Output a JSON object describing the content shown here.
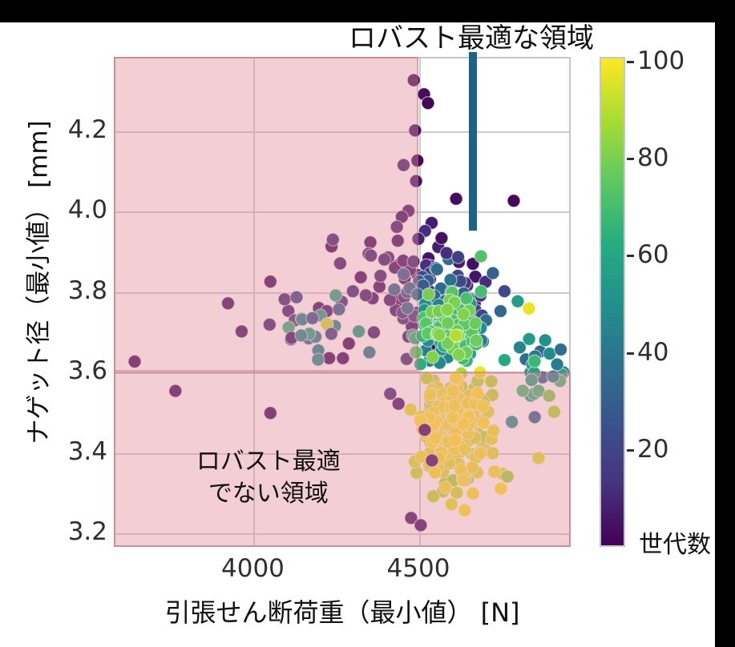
{
  "title": {
    "text": "ロバスト最適な領域"
  },
  "annotations": {
    "not_robust_line1": "ロバスト最適",
    "not_robust_line2": "でない領域",
    "colorbar_label": "世代数"
  },
  "axes": {
    "x_label": "引張せん断荷重（最小値） [N]",
    "y_label": "ナゲット径（最小値） [mm]",
    "x_ticks": [
      "4000",
      "4500"
    ],
    "x_tick_values": [
      4000,
      4500
    ],
    "y_ticks": [
      "4.2",
      "4.0",
      "3.8",
      "3.6",
      "3.4",
      "3.2"
    ],
    "y_tick_values": [
      4.2,
      4.0,
      3.8,
      3.6,
      3.4,
      3.2
    ],
    "x_range": [
      3580,
      4960
    ],
    "y_range": [
      3.164,
      4.383
    ],
    "grid": true
  },
  "colorbar": {
    "label": "世代数",
    "ticks": [
      100,
      80,
      60,
      40,
      20
    ],
    "vmin": 0,
    "vmax": 101
  },
  "colors": {
    "robust_line": "#1b6488",
    "region_fill": "rgba(226,140,154,0.42)",
    "region_border": "rgba(165,72,88,0.30)",
    "gridline": "#cbcbcb",
    "point_edge": "rgba(255,255,255,0.55)",
    "viridis_stops": [
      [
        0.0,
        "#440154"
      ],
      [
        0.125,
        "#46327e"
      ],
      [
        0.25,
        "#3b528b"
      ],
      [
        0.375,
        "#2c728e"
      ],
      [
        0.5,
        "#21918c"
      ],
      [
        0.625,
        "#27ad81"
      ],
      [
        0.75,
        "#5ec962"
      ],
      [
        0.875,
        "#aadc32"
      ],
      [
        1.0,
        "#fde725"
      ]
    ]
  },
  "chart_data": {
    "type": "scatter",
    "title": "ロバスト最適な領域",
    "xlabel": "引張せん断荷重（最小値） [N]",
    "ylabel": "ナゲット径（最小値） [mm]",
    "xlim": [
      3580,
      4960
    ],
    "ylim": [
      3.164,
      4.383
    ],
    "colormap": "viridis",
    "color_label": "世代数",
    "color_range": [
      0,
      100
    ],
    "point_radius_px": 8,
    "robust_line": {
      "x": 4665,
      "y_top": 4.395,
      "y_bottom": 3.951
    },
    "non_robust_regions": [
      {
        "x0": 3580,
        "x1": 4500,
        "y0": 3.6,
        "y1": 4.383
      },
      {
        "x0": 3580,
        "x1": 4960,
        "y0": 3.164,
        "y1": 3.6
      }
    ],
    "not_robust_label_pos": {
      "x": 4042,
      "y": 3.34
    },
    "clusters": [
      {
        "name": "late-yellow-core",
        "cx": 4610,
        "cy": 3.475,
        "sx": 55,
        "sy": 0.055,
        "count": 230,
        "gen": [
          88,
          100
        ]
      },
      {
        "name": "late-yellow-low",
        "cx": 4620,
        "cy": 3.36,
        "sx": 55,
        "sy": 0.035,
        "count": 30,
        "gen": [
          85,
          100
        ]
      },
      {
        "name": "mid-green-teal",
        "cx": 4595,
        "cy": 3.7,
        "sx": 48,
        "sy": 0.045,
        "count": 130,
        "gen": [
          40,
          82
        ]
      },
      {
        "name": "mid-blue-purple",
        "cx": 4570,
        "cy": 3.775,
        "sx": 62,
        "sy": 0.05,
        "count": 65,
        "gen": [
          10,
          38
        ]
      },
      {
        "name": "early-spread",
        "cx": 4430,
        "cy": 3.82,
        "sx": 120,
        "sy": 0.085,
        "count": 60,
        "gen": [
          1,
          12
        ]
      },
      {
        "name": "left-mixed",
        "cx": 4180,
        "cy": 3.72,
        "sx": 90,
        "sy": 0.045,
        "count": 14,
        "gen": [
          3,
          60
        ]
      },
      {
        "name": "right-mid-teal",
        "cx": 4840,
        "cy": 3.6,
        "sx": 55,
        "sy": 0.055,
        "count": 22,
        "gen": [
          28,
          72
        ]
      }
    ],
    "outliers": [
      {
        "x": 4486,
        "y": 4.325,
        "gen": 2
      },
      {
        "x": 4517,
        "y": 4.29,
        "gen": 3
      },
      {
        "x": 4529,
        "y": 4.268,
        "gen": 1
      },
      {
        "x": 4490,
        "y": 4.2,
        "gen": 4
      },
      {
        "x": 4497,
        "y": 4.125,
        "gen": 2
      },
      {
        "x": 4493,
        "y": 4.074,
        "gen": 5
      },
      {
        "x": 4614,
        "y": 4.03,
        "gen": 3
      },
      {
        "x": 4788,
        "y": 4.025,
        "gen": 2
      },
      {
        "x": 4470,
        "y": 4.0,
        "gen": 6
      },
      {
        "x": 4450,
        "y": 3.985,
        "gen": 4
      },
      {
        "x": 4435,
        "y": 3.96,
        "gen": 8
      },
      {
        "x": 4540,
        "y": 3.97,
        "gen": 7
      },
      {
        "x": 4520,
        "y": 3.95,
        "gen": 12
      },
      {
        "x": 4500,
        "y": 3.93,
        "gen": 9
      },
      {
        "x": 3643,
        "y": 3.625,
        "gen": 2
      },
      {
        "x": 3766,
        "y": 3.552,
        "gen": 3
      },
      {
        "x": 4053,
        "y": 3.497,
        "gen": 2
      },
      {
        "x": 3925,
        "y": 3.77,
        "gen": 4
      },
      {
        "x": 3966,
        "y": 3.7,
        "gen": 5
      },
      {
        "x": 4096,
        "y": 3.78,
        "gen": 10
      },
      {
        "x": 4132,
        "y": 3.785,
        "gen": 20
      },
      {
        "x": 4108,
        "y": 3.71,
        "gen": 65
      },
      {
        "x": 4149,
        "y": 3.73,
        "gen": 45
      },
      {
        "x": 4180,
        "y": 3.733,
        "gen": 25
      },
      {
        "x": 4117,
        "y": 3.684,
        "gen": 5
      },
      {
        "x": 4146,
        "y": 3.69,
        "gen": 48
      },
      {
        "x": 4197,
        "y": 3.63,
        "gen": 50
      },
      {
        "x": 4224,
        "y": 3.718,
        "gen": 92
      },
      {
        "x": 4260,
        "y": 3.755,
        "gen": 30
      },
      {
        "x": 4237,
        "y": 3.694,
        "gen": 18
      },
      {
        "x": 4290,
        "y": 3.67,
        "gen": 3
      },
      {
        "x": 4320,
        "y": 3.7,
        "gen": 55
      },
      {
        "x": 4352,
        "y": 3.648,
        "gen": 40
      },
      {
        "x": 4560,
        "y": 3.91,
        "gen": 8
      },
      {
        "x": 4585,
        "y": 3.895,
        "gen": 12
      },
      {
        "x": 4570,
        "y": 3.932,
        "gen": 4
      },
      {
        "x": 4620,
        "y": 3.885,
        "gen": 18
      },
      {
        "x": 4689,
        "y": 3.887,
        "gen": 72
      },
      {
        "x": 4834,
        "y": 3.757,
        "gen": 97
      },
      {
        "x": 4725,
        "y": 3.845,
        "gen": 30
      },
      {
        "x": 4760,
        "y": 3.8,
        "gen": 22
      },
      {
        "x": 4800,
        "y": 3.775,
        "gen": 55
      },
      {
        "x": 4883,
        "y": 3.678,
        "gen": 50
      },
      {
        "x": 4919,
        "y": 3.618,
        "gen": 42
      },
      {
        "x": 4907,
        "y": 3.588,
        "gen": 45
      },
      {
        "x": 4863,
        "y": 3.552,
        "gen": 68
      },
      {
        "x": 4930,
        "y": 3.655,
        "gen": 35
      },
      {
        "x": 4895,
        "y": 3.54,
        "gen": 80
      },
      {
        "x": 4910,
        "y": 3.5,
        "gen": 88
      },
      {
        "x": 4863,
        "y": 3.385,
        "gen": 95
      },
      {
        "x": 4749,
        "y": 3.309,
        "gen": 100
      },
      {
        "x": 4665,
        "y": 3.297,
        "gen": 98
      },
      {
        "x": 4616,
        "y": 3.299,
        "gen": 93
      },
      {
        "x": 4769,
        "y": 3.339,
        "gen": 85
      },
      {
        "x": 4600,
        "y": 3.27,
        "gen": 96
      },
      {
        "x": 4640,
        "y": 3.255,
        "gen": 99
      },
      {
        "x": 4541,
        "y": 3.379,
        "gen": 3
      },
      {
        "x": 4519,
        "y": 3.455,
        "gen": 2
      },
      {
        "x": 4478,
        "y": 3.236,
        "gen": 5
      },
      {
        "x": 4507,
        "y": 3.218,
        "gen": 4
      },
      {
        "x": 4440,
        "y": 3.52,
        "gen": 6
      },
      {
        "x": 4415,
        "y": 3.545,
        "gen": 10
      }
    ]
  }
}
